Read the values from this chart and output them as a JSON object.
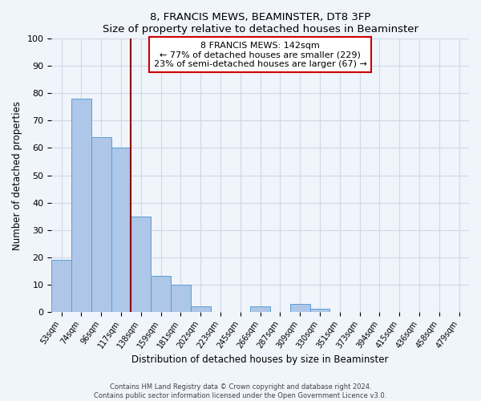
{
  "title": "8, FRANCIS MEWS, BEAMINSTER, DT8 3FP",
  "subtitle": "Size of property relative to detached houses in Beaminster",
  "xlabel": "Distribution of detached houses by size in Beaminster",
  "ylabel": "Number of detached properties",
  "bar_labels": [
    "53sqm",
    "74sqm",
    "96sqm",
    "117sqm",
    "138sqm",
    "159sqm",
    "181sqm",
    "202sqm",
    "223sqm",
    "245sqm",
    "266sqm",
    "287sqm",
    "309sqm",
    "330sqm",
    "351sqm",
    "373sqm",
    "394sqm",
    "415sqm",
    "436sqm",
    "458sqm",
    "479sqm"
  ],
  "bar_values": [
    19,
    78,
    64,
    60,
    35,
    13,
    10,
    2,
    0,
    0,
    2,
    0,
    3,
    1,
    0,
    0,
    0,
    0,
    0,
    0,
    0
  ],
  "bar_color": "#aec6e8",
  "bar_edge_color": "#5a9fd4",
  "vline_x": 4.0,
  "vline_color": "#8b0000",
  "annotation_title": "8 FRANCIS MEWS: 142sqm",
  "annotation_line1": "← 77% of detached houses are smaller (229)",
  "annotation_line2": "23% of semi-detached houses are larger (67) →",
  "annotation_box_color": "#ffffff",
  "annotation_box_edge_color": "#cc0000",
  "ylim": [
    0,
    100
  ],
  "yticks": [
    0,
    10,
    20,
    30,
    40,
    50,
    60,
    70,
    80,
    90,
    100
  ],
  "grid_color": "#d0d8e8",
  "footer_line1": "Contains HM Land Registry data © Crown copyright and database right 2024.",
  "footer_line2": "Contains public sector information licensed under the Open Government Licence v3.0.",
  "bg_color": "#f0f4fb",
  "figwidth": 6.0,
  "figheight": 5.0,
  "dpi": 100
}
